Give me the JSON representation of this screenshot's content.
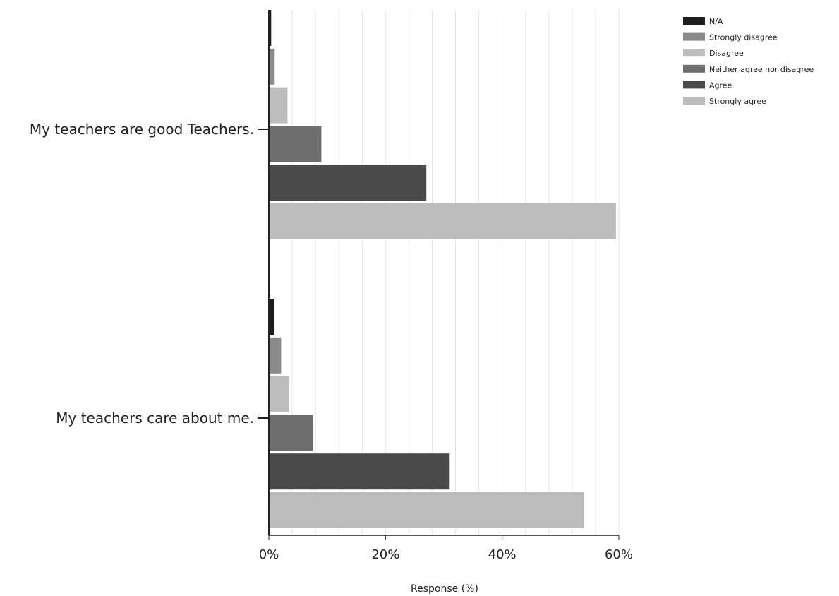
{
  "chart_data": {
    "type": "bar",
    "orientation": "horizontal",
    "categories": [
      "My teachers are good Teachers.",
      "My teachers care about me."
    ],
    "series": [
      {
        "name": "N/A",
        "color": "#1e1e1e",
        "values": [
          0.4,
          0.9
        ]
      },
      {
        "name": "Strongly disagree",
        "color": "#8a8a8a",
        "values": [
          1.0,
          2.1
        ]
      },
      {
        "name": "Disagree",
        "color": "#bdbdbd",
        "values": [
          3.2,
          3.5
        ]
      },
      {
        "name": "Neither agree nor disagree",
        "color": "#6e6e6e",
        "values": [
          9.0,
          7.6
        ]
      },
      {
        "name": "Agree",
        "color": "#4a4a4a",
        "values": [
          27.0,
          31.0
        ]
      },
      {
        "name": "Strongly agree",
        "color": "#bcbcbc",
        "values": [
          59.5,
          54.0
        ]
      }
    ],
    "xlabel": "Response (%)",
    "xlim": [
      0,
      60
    ],
    "ticks": [
      0,
      20,
      40,
      60
    ],
    "tick_labels": [
      "0%",
      "20%",
      "40%",
      "60%"
    ],
    "grid": true,
    "legend_position": "top-right"
  }
}
